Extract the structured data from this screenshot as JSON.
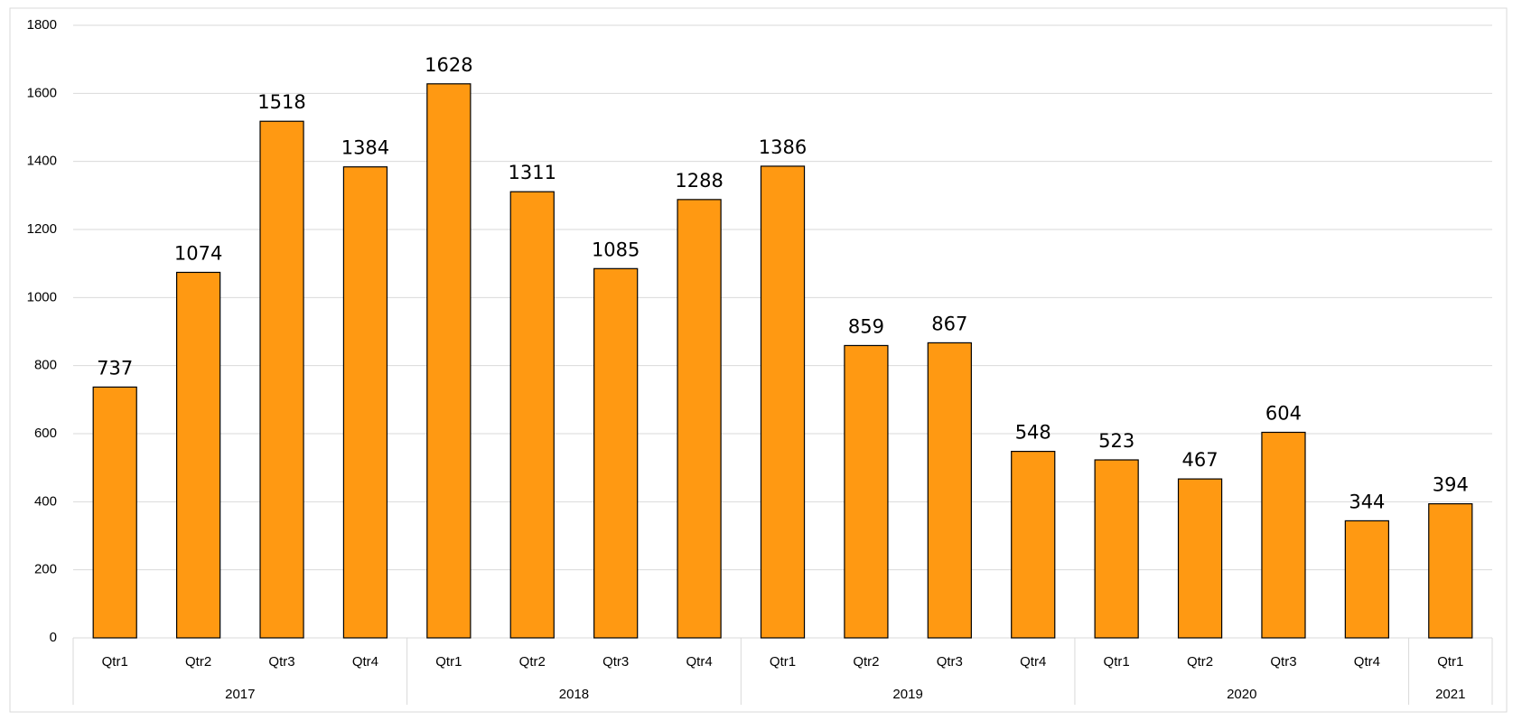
{
  "chart_data": {
    "type": "bar",
    "groups": [
      {
        "label": "2017",
        "categories": [
          "Qtr1",
          "Qtr2",
          "Qtr3",
          "Qtr4"
        ]
      },
      {
        "label": "2018",
        "categories": [
          "Qtr1",
          "Qtr2",
          "Qtr3",
          "Qtr4"
        ]
      },
      {
        "label": "2019",
        "categories": [
          "Qtr1",
          "Qtr2",
          "Qtr3",
          "Qtr4"
        ]
      },
      {
        "label": "2020",
        "categories": [
          "Qtr1",
          "Qtr2",
          "Qtr3",
          "Qtr4"
        ]
      },
      {
        "label": "2021",
        "categories": [
          "Qtr1"
        ]
      }
    ],
    "values": [
      737,
      1074,
      1518,
      1384,
      1628,
      1311,
      1085,
      1288,
      1386,
      859,
      867,
      548,
      523,
      467,
      604,
      344,
      394
    ],
    "color": "#ff9912",
    "ylim": [
      0,
      1800
    ],
    "yticks": [
      0,
      200,
      400,
      600,
      800,
      1000,
      1200,
      1400,
      1600,
      1800
    ],
    "grid": true
  }
}
